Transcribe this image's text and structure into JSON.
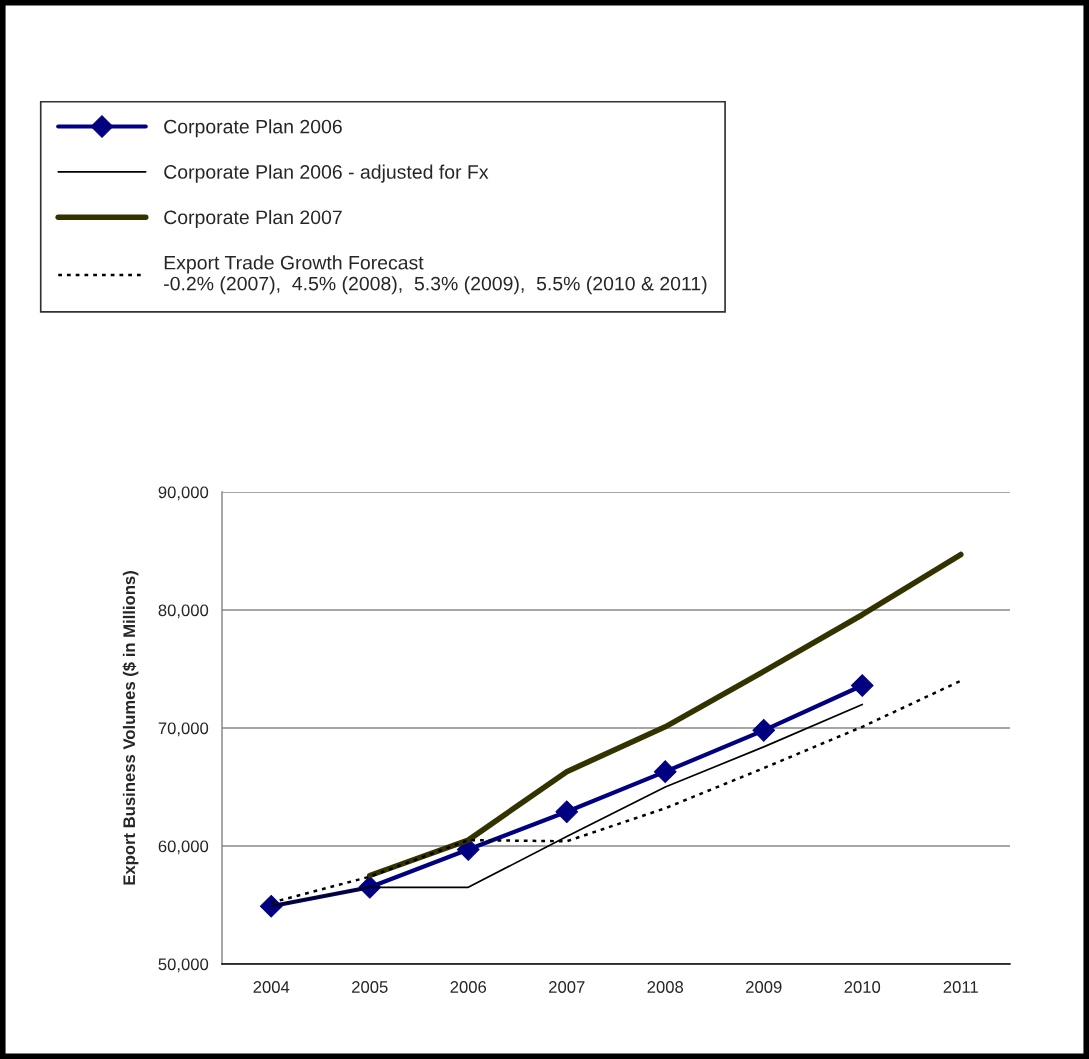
{
  "chart_data": {
    "type": "line",
    "ylabel": "Export Business Volumes ($ in Millions)",
    "categories": [
      "2004",
      "2005",
      "2006",
      "2007",
      "2008",
      "2009",
      "2010",
      "2011"
    ],
    "ylim": [
      50000,
      90000
    ],
    "yticks": [
      {
        "value": 50000,
        "label": "50,000"
      },
      {
        "value": 60000,
        "label": "60,000"
      },
      {
        "value": 70000,
        "label": "70,000"
      },
      {
        "value": 80000,
        "label": "80,000"
      },
      {
        "value": 90000,
        "label": "90,000"
      }
    ],
    "grid": "y",
    "legend": "top",
    "series": [
      {
        "name": "Corporate Plan 2006",
        "color": "#000080",
        "marker": "diamond",
        "line_style": "solid",
        "values": [
          54900,
          56500,
          59700,
          62900,
          66300,
          69800,
          73600,
          null
        ]
      },
      {
        "name": "Corporate Plan 2006 - adjusted for Fx",
        "color": "#000000",
        "marker": "none",
        "line_style": "solid",
        "values": [
          54900,
          56500,
          56500,
          60800,
          65000,
          68400,
          72000,
          null
        ]
      },
      {
        "name": "Corporate Plan 2007",
        "color": "#333300",
        "marker": "none",
        "line_style": "solid",
        "values": [
          null,
          57500,
          60500,
          66300,
          70100,
          74800,
          79600,
          84700
        ]
      },
      {
        "name": "Export Trade Growth Forecast\n-0.2% (2007),  4.5% (2008),  5.3% (2009),  5.5% (2010 & 2011)",
        "color": "#000000",
        "marker": "none",
        "line_style": "dotted",
        "values": [
          55200,
          57400,
          60500,
          60400,
          63200,
          66600,
          70100,
          74000
        ]
      }
    ]
  }
}
